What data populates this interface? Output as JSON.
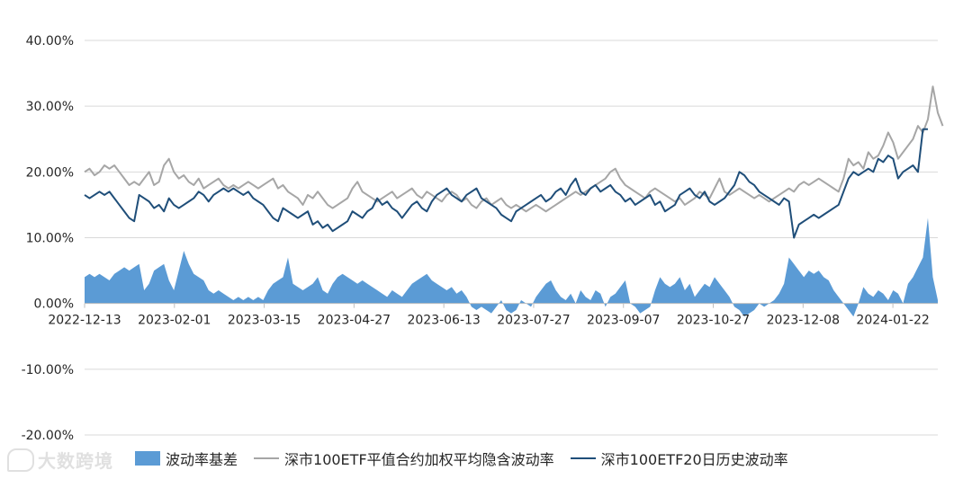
{
  "chart_data": {
    "type": "line",
    "title": "",
    "xlabel": "",
    "ylabel": "",
    "ylim": [
      -0.2,
      0.4
    ],
    "ytick_labels": [
      "40.00%",
      "30.00%",
      "20.00%",
      "10.00%",
      "0.00%",
      "-10.00%",
      "-20.00%"
    ],
    "ytick_values": [
      0.4,
      0.3,
      0.2,
      0.1,
      0.0,
      -0.1,
      -0.2
    ],
    "xtick_labels": [
      "2022-12-13",
      "2023-02-01",
      "2023-03-15",
      "2023-04-27",
      "2023-06-13",
      "2023-07-27",
      "2023-09-07",
      "2023-10-27",
      "2023-12-08",
      "2024-01-22"
    ],
    "legend_position": "bottom",
    "grid": "horizontal",
    "colors": {
      "basis": "#5b9bd5",
      "implied": "#a6a6a6",
      "historical": "#1f4e79"
    },
    "series": [
      {
        "name": "波动率基差",
        "kind": "area",
        "values": [
          0.04,
          0.045,
          0.04,
          0.045,
          0.04,
          0.035,
          0.045,
          0.05,
          0.055,
          0.05,
          0.055,
          0.06,
          0.02,
          0.03,
          0.05,
          0.055,
          0.06,
          0.035,
          0.02,
          0.05,
          0.08,
          0.06,
          0.045,
          0.04,
          0.035,
          0.02,
          0.015,
          0.02,
          0.015,
          0.01,
          0.005,
          0.01,
          0.005,
          0.01,
          0.005,
          0.01,
          0.005,
          0.02,
          0.03,
          0.035,
          0.04,
          0.07,
          0.03,
          0.025,
          0.02,
          0.025,
          0.03,
          0.04,
          0.02,
          0.015,
          0.03,
          0.04,
          0.045,
          0.04,
          0.035,
          0.03,
          0.035,
          0.03,
          0.025,
          0.02,
          0.015,
          0.01,
          0.02,
          0.015,
          0.01,
          0.02,
          0.03,
          0.035,
          0.04,
          0.045,
          0.035,
          0.03,
          0.025,
          0.02,
          0.025,
          0.015,
          0.02,
          0.01,
          -0.005,
          -0.01,
          -0.005,
          -0.01,
          -0.015,
          -0.005,
          0.005,
          -0.01,
          -0.015,
          -0.01,
          0.005,
          0.0,
          -0.005,
          0.01,
          0.02,
          0.03,
          0.035,
          0.02,
          0.01,
          0.005,
          0.015,
          0.0,
          0.02,
          0.01,
          0.005,
          0.02,
          0.015,
          -0.005,
          0.01,
          0.015,
          0.025,
          0.035,
          0.0,
          -0.005,
          -0.015,
          -0.01,
          -0.005,
          0.02,
          0.04,
          0.03,
          0.025,
          0.03,
          0.04,
          0.02,
          0.03,
          0.01,
          0.02,
          0.03,
          0.025,
          0.04,
          0.03,
          0.02,
          0.01,
          -0.005,
          -0.01,
          -0.02,
          -0.015,
          -0.01,
          0.0,
          -0.005,
          0.0,
          0.005,
          0.015,
          0.03,
          0.07,
          0.06,
          0.05,
          0.04,
          0.05,
          0.045,
          0.05,
          0.04,
          0.035,
          0.02,
          0.01,
          0.0,
          -0.01,
          -0.02,
          0.0,
          0.025,
          0.015,
          0.01,
          0.02,
          0.015,
          0.005,
          0.02,
          0.015,
          0.0,
          0.03,
          0.04,
          0.055,
          0.07,
          0.13,
          0.04,
          0.005
        ]
      },
      {
        "name": "深市100ETF平值合约加权平均隐含波动率",
        "kind": "line",
        "values": [
          0.2,
          0.205,
          0.195,
          0.2,
          0.21,
          0.205,
          0.21,
          0.2,
          0.19,
          0.18,
          0.185,
          0.18,
          0.19,
          0.2,
          0.18,
          0.185,
          0.21,
          0.22,
          0.2,
          0.19,
          0.195,
          0.185,
          0.18,
          0.19,
          0.175,
          0.18,
          0.185,
          0.19,
          0.18,
          0.175,
          0.18,
          0.175,
          0.18,
          0.185,
          0.18,
          0.175,
          0.18,
          0.185,
          0.19,
          0.175,
          0.18,
          0.17,
          0.165,
          0.16,
          0.15,
          0.165,
          0.16,
          0.17,
          0.16,
          0.15,
          0.145,
          0.15,
          0.155,
          0.16,
          0.175,
          0.185,
          0.17,
          0.165,
          0.16,
          0.155,
          0.16,
          0.165,
          0.17,
          0.16,
          0.165,
          0.17,
          0.175,
          0.165,
          0.16,
          0.17,
          0.165,
          0.16,
          0.155,
          0.165,
          0.17,
          0.165,
          0.155,
          0.16,
          0.15,
          0.145,
          0.155,
          0.16,
          0.15,
          0.155,
          0.16,
          0.15,
          0.145,
          0.15,
          0.145,
          0.14,
          0.145,
          0.15,
          0.145,
          0.14,
          0.145,
          0.15,
          0.155,
          0.16,
          0.165,
          0.17,
          0.165,
          0.17,
          0.175,
          0.18,
          0.185,
          0.19,
          0.2,
          0.205,
          0.19,
          0.18,
          0.175,
          0.17,
          0.165,
          0.16,
          0.17,
          0.175,
          0.17,
          0.165,
          0.16,
          0.155,
          0.16,
          0.15,
          0.155,
          0.16,
          0.17,
          0.165,
          0.16,
          0.175,
          0.19,
          0.17,
          0.165,
          0.17,
          0.175,
          0.17,
          0.165,
          0.16,
          0.165,
          0.16,
          0.155,
          0.16,
          0.165,
          0.17,
          0.175,
          0.17,
          0.18,
          0.185,
          0.18,
          0.185,
          0.19,
          0.185,
          0.18,
          0.175,
          0.17,
          0.19,
          0.22,
          0.21,
          0.215,
          0.205,
          0.23,
          0.22,
          0.225,
          0.24,
          0.26,
          0.245,
          0.22,
          0.23,
          0.24,
          0.25,
          0.27,
          0.26,
          0.28,
          0.33,
          0.29,
          0.27
        ]
      },
      {
        "name": "深市100ETF20日历史波动率",
        "kind": "line",
        "values": [
          0.165,
          0.16,
          0.165,
          0.17,
          0.165,
          0.17,
          0.16,
          0.15,
          0.14,
          0.13,
          0.125,
          0.165,
          0.16,
          0.155,
          0.145,
          0.15,
          0.14,
          0.16,
          0.15,
          0.145,
          0.15,
          0.155,
          0.16,
          0.17,
          0.165,
          0.155,
          0.165,
          0.17,
          0.175,
          0.17,
          0.175,
          0.17,
          0.165,
          0.17,
          0.16,
          0.155,
          0.15,
          0.14,
          0.13,
          0.125,
          0.145,
          0.14,
          0.135,
          0.13,
          0.135,
          0.14,
          0.12,
          0.125,
          0.115,
          0.12,
          0.11,
          0.115,
          0.12,
          0.125,
          0.14,
          0.135,
          0.13,
          0.14,
          0.145,
          0.16,
          0.15,
          0.155,
          0.145,
          0.14,
          0.13,
          0.14,
          0.15,
          0.155,
          0.145,
          0.14,
          0.155,
          0.165,
          0.17,
          0.175,
          0.165,
          0.16,
          0.155,
          0.165,
          0.17,
          0.175,
          0.16,
          0.155,
          0.15,
          0.145,
          0.135,
          0.13,
          0.125,
          0.14,
          0.145,
          0.15,
          0.155,
          0.16,
          0.165,
          0.155,
          0.16,
          0.17,
          0.175,
          0.165,
          0.18,
          0.19,
          0.17,
          0.165,
          0.175,
          0.18,
          0.17,
          0.175,
          0.18,
          0.17,
          0.165,
          0.155,
          0.16,
          0.15,
          0.155,
          0.16,
          0.165,
          0.15,
          0.155,
          0.14,
          0.145,
          0.15,
          0.165,
          0.17,
          0.175,
          0.165,
          0.16,
          0.17,
          0.155,
          0.15,
          0.155,
          0.16,
          0.17,
          0.18,
          0.2,
          0.195,
          0.185,
          0.18,
          0.17,
          0.165,
          0.16,
          0.155,
          0.15,
          0.16,
          0.155,
          0.1,
          0.12,
          0.125,
          0.13,
          0.135,
          0.13,
          0.135,
          0.14,
          0.145,
          0.15,
          0.17,
          0.19,
          0.2,
          0.195,
          0.2,
          0.205,
          0.2,
          0.22,
          0.215,
          0.225,
          0.22,
          0.19,
          0.2,
          0.205,
          0.21,
          0.2,
          0.265,
          0.265
        ]
      }
    ]
  },
  "watermark": {
    "text": "大数跨境"
  }
}
